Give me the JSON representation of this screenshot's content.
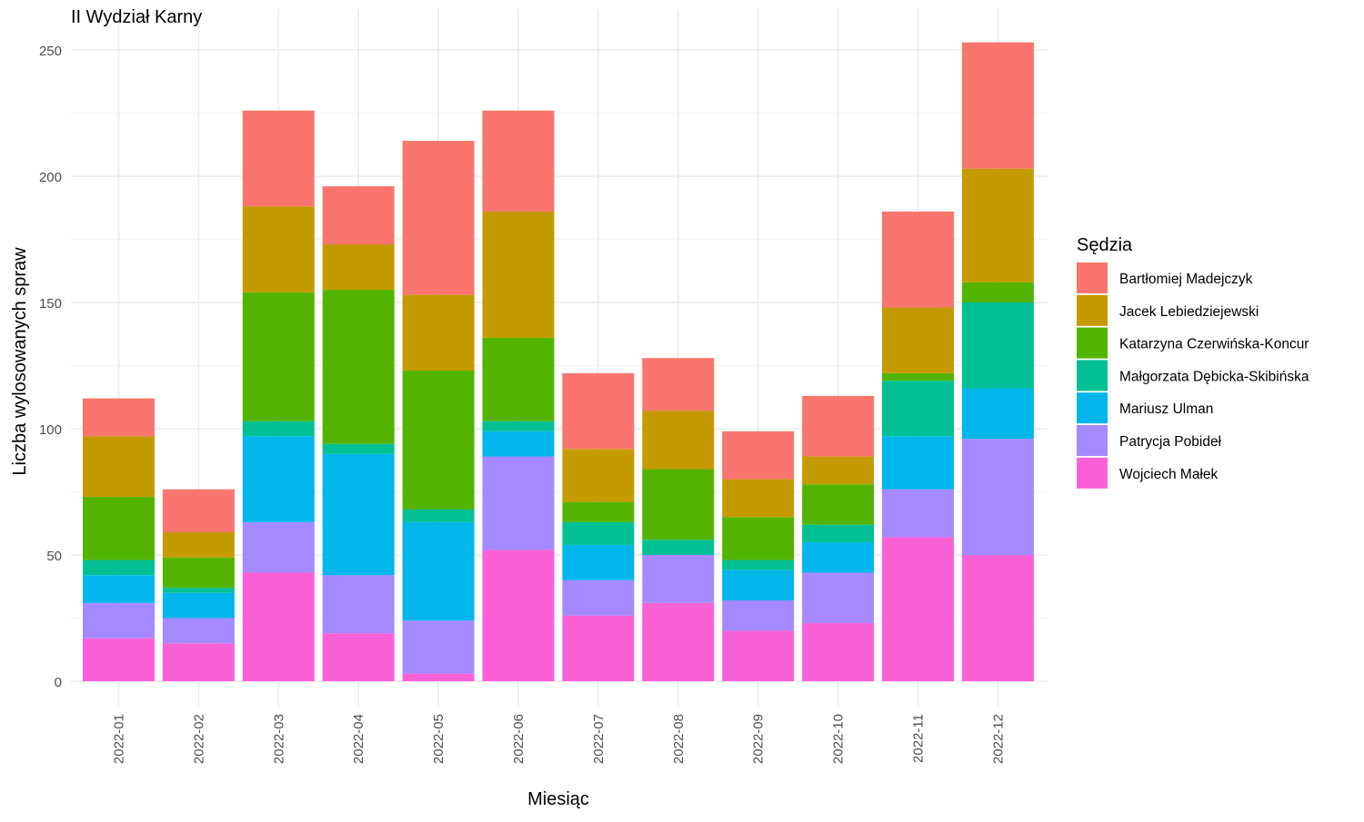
{
  "chart_data": {
    "type": "bar",
    "stacked": true,
    "title": "II Wydział Karny",
    "xlabel": "Miesiąc",
    "ylabel": "Liczba wylosowanych spraw",
    "ylim": [
      0,
      260
    ],
    "yticks": [
      0,
      50,
      100,
      150,
      200,
      250
    ],
    "grid": true,
    "legend_title": "Sędzia",
    "legend_position": "right",
    "categories": [
      "2022-01",
      "2022-02",
      "2022-03",
      "2022-04",
      "2022-05",
      "2022-06",
      "2022-07",
      "2022-08",
      "2022-09",
      "2022-10",
      "2022-11",
      "2022-12"
    ],
    "series": [
      {
        "name": "Wojciech Małek",
        "color": "#FB61D7",
        "values": [
          17,
          15,
          43,
          19,
          3,
          52,
          26,
          31,
          20,
          23,
          57,
          50
        ]
      },
      {
        "name": "Patrycja Pobideł",
        "color": "#A58AFF",
        "values": [
          14,
          10,
          20,
          23,
          21,
          37,
          14,
          19,
          12,
          20,
          19,
          46
        ]
      },
      {
        "name": "Mariusz Ulman",
        "color": "#00B6EB",
        "values": [
          11,
          10,
          34,
          48,
          39,
          10,
          14,
          0,
          12,
          12,
          21,
          20
        ]
      },
      {
        "name": "Małgorzata Dębicka-Skibińska",
        "color": "#00C094",
        "values": [
          6,
          2,
          6,
          4,
          5,
          4,
          9,
          6,
          4,
          7,
          22,
          34
        ]
      },
      {
        "name": "Katarzyna Czerwińska-Koncur",
        "color": "#53B400",
        "values": [
          25,
          12,
          51,
          61,
          55,
          33,
          8,
          28,
          17,
          16,
          3,
          8
        ]
      },
      {
        "name": "Jacek Lebiedziejewski",
        "color": "#C49A00",
        "values": [
          24,
          10,
          34,
          18,
          30,
          50,
          21,
          23,
          15,
          11,
          26,
          45
        ]
      },
      {
        "name": "Bartłomiej Madejczyk",
        "color": "#F8766D",
        "values": [
          15,
          17,
          38,
          23,
          61,
          40,
          30,
          21,
          19,
          24,
          38,
          50
        ]
      }
    ],
    "legend_order": [
      "Bartłomiej Madejczyk",
      "Jacek Lebiedziejewski",
      "Katarzyna Czerwińska-Koncur",
      "Małgorzata Dębicka-Skibińska",
      "Mariusz Ulman",
      "Patrycja Pobideł",
      "Wojciech Małek"
    ]
  }
}
